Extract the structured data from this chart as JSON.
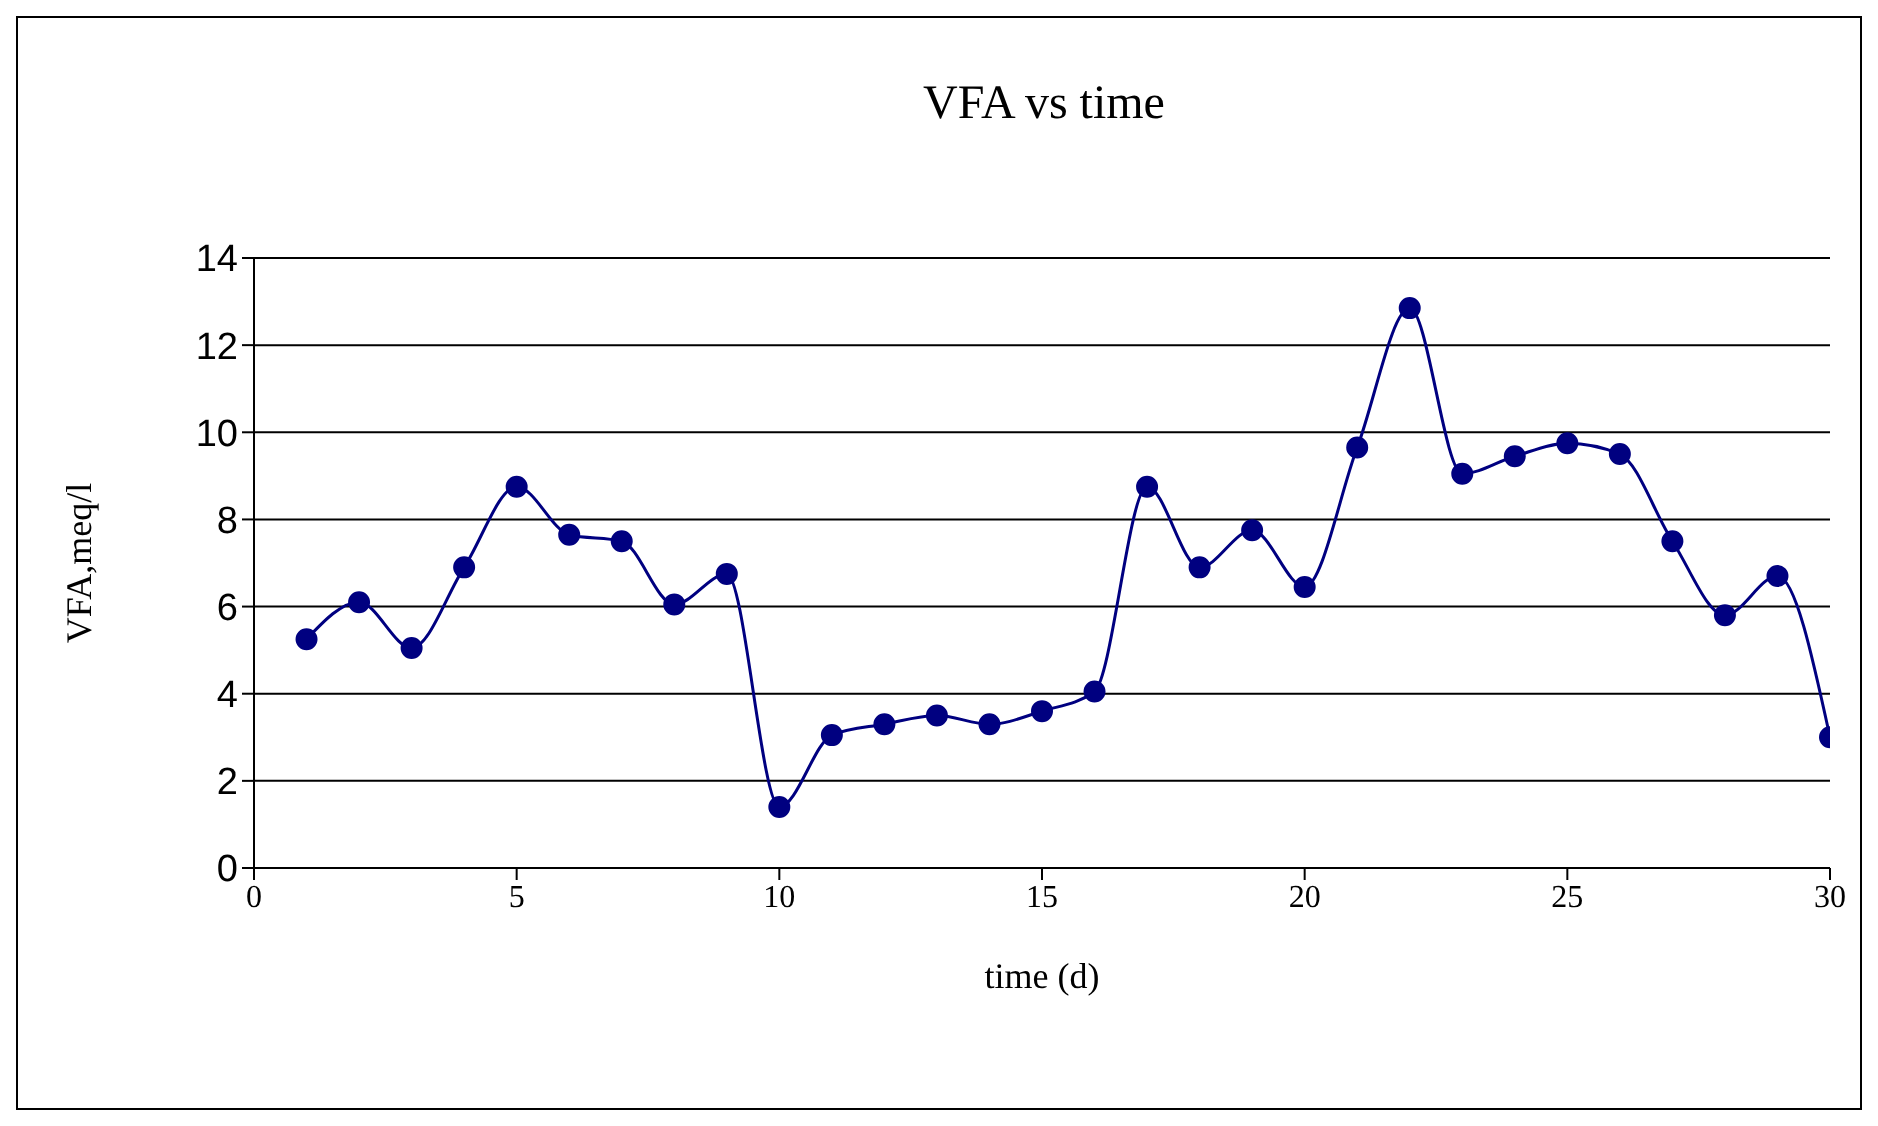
{
  "chart_data": {
    "type": "line",
    "title": "VFA vs time",
    "xlabel": "time (d)",
    "ylabel": "VFA,meq/l",
    "x": [
      1,
      2,
      3,
      4,
      5,
      6,
      7,
      8,
      9,
      10,
      11,
      12,
      13,
      14,
      15,
      16,
      17,
      18,
      19,
      20,
      21,
      22,
      23,
      24,
      25,
      26,
      27,
      28,
      29,
      30
    ],
    "series": [
      {
        "color": "#000080",
        "values": [
          5.25,
          6.1,
          5.05,
          6.9,
          8.75,
          7.65,
          7.5,
          6.05,
          6.75,
          1.4,
          3.05,
          3.3,
          3.5,
          3.3,
          3.6,
          4.05,
          8.75,
          6.9,
          7.75,
          6.45,
          9.65,
          12.85,
          9.05,
          9.45,
          9.75,
          9.5,
          7.5,
          5.8,
          6.7,
          3.0
        ]
      }
    ],
    "xlim": [
      0,
      30
    ],
    "xticks": [
      0,
      5,
      10,
      15,
      20,
      25,
      30
    ],
    "ylim": [
      0,
      14
    ],
    "yticks": [
      0,
      2,
      4,
      6,
      8,
      10,
      12,
      14
    ],
    "grid": "y",
    "legend": false,
    "marker": "circle",
    "line_style": "solid"
  }
}
